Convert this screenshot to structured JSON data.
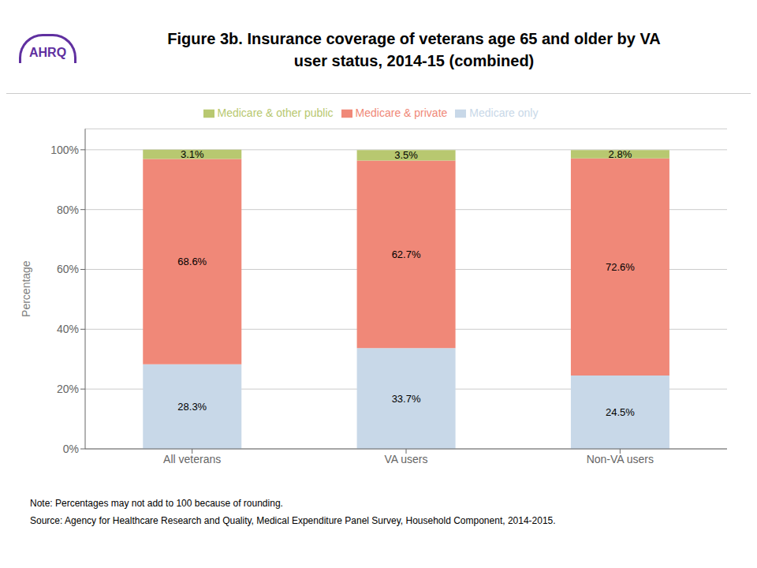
{
  "chart_data": {
    "type": "bar",
    "stacked": true,
    "title": [
      "Figure 3b. Insurance coverage of veterans age 65 and older by VA",
      "user status, 2014-15 (combined)"
    ],
    "categories": [
      "All veterans",
      "VA users",
      "Non-VA users"
    ],
    "series": [
      {
        "name": "Medicare only",
        "color": "#c8d8e8",
        "values": [
          28.3,
          33.7,
          24.5
        ],
        "value_labels": [
          "28.3%",
          "33.7%",
          "24.5%"
        ]
      },
      {
        "name": "Medicare & private",
        "color": "#f08878",
        "values": [
          68.6,
          62.7,
          72.6
        ],
        "value_labels": [
          "68.6%",
          "62.7%",
          "72.6%"
        ]
      },
      {
        "name": "Medicare & other public",
        "color": "#b8c870",
        "values": [
          3.1,
          3.5,
          2.8
        ],
        "value_labels": [
          "3.1%",
          "3.5%",
          "2.8%"
        ]
      }
    ],
    "ylabel": "Percentage",
    "ylim": [
      0,
      107
    ],
    "yticks": [
      {
        "value": 0,
        "label": "0%"
      },
      {
        "value": 20,
        "label": "20%"
      },
      {
        "value": 40,
        "label": "40%"
      },
      {
        "value": 60,
        "label": "60%"
      },
      {
        "value": 80,
        "label": "80%"
      },
      {
        "value": 100,
        "label": "100%"
      }
    ],
    "grid": true,
    "legend": "top",
    "data_labels": true,
    "annotations": [
      "AHRQ",
      "Note: Percentages may not add to 100 because of rounding.",
      "Source: Agency for Healthcare Research and Quality, Medical Expenditure Panel Survey, Household Component, 2014-2015."
    ]
  }
}
